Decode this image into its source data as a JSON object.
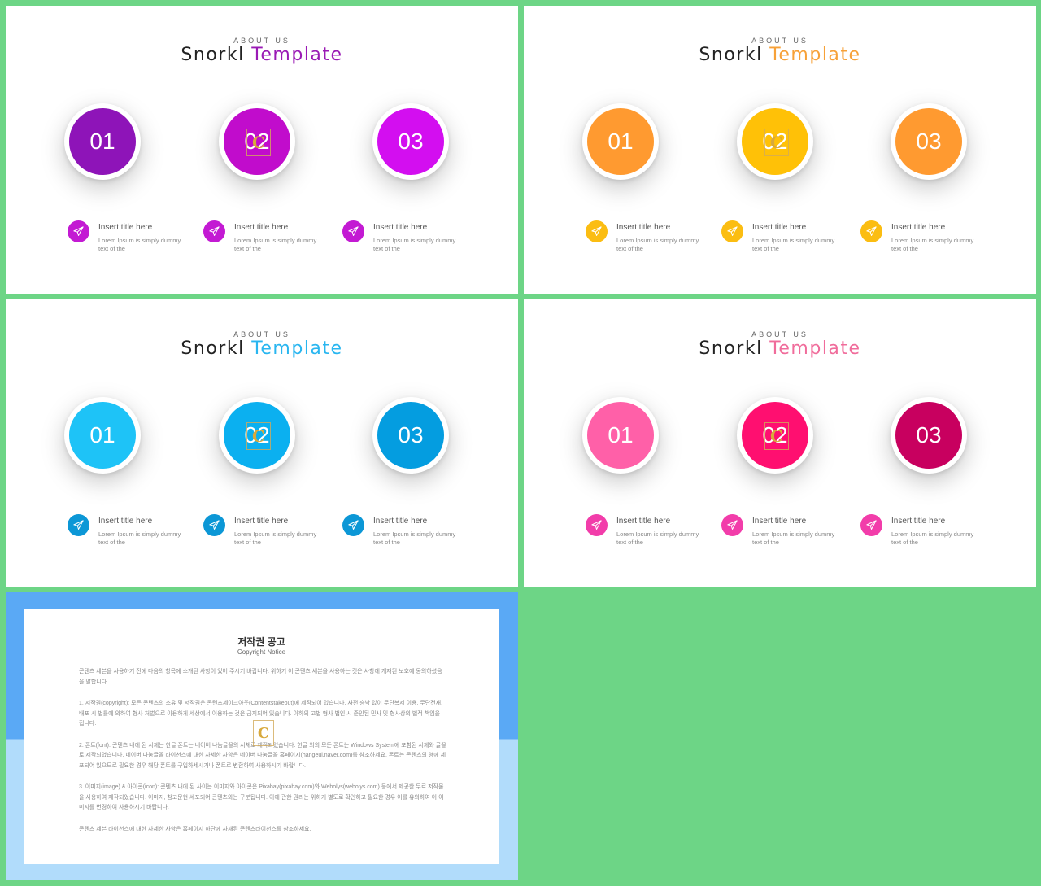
{
  "slides": [
    {
      "kicker": "ABOUT US",
      "title_a": "Snorkl",
      "title_b": "Template",
      "accent": "#9a1ab5",
      "circles": [
        {
          "n": "01",
          "color": "#8e14b8"
        },
        {
          "n": "02",
          "color": "#c10ccc"
        },
        {
          "n": "03",
          "color": "#d30ef0"
        }
      ],
      "icon_colors": [
        "#c31ad3",
        "#c31ad3",
        "#c31ad3"
      ]
    },
    {
      "kicker": "ABOUT US",
      "title_a": "Snorkl",
      "title_b": "Template",
      "accent": "#f7a138",
      "circles": [
        {
          "n": "01",
          "color": "#ff9a30"
        },
        {
          "n": "02",
          "color": "#ffc107"
        },
        {
          "n": "03",
          "color": "#ff9a30"
        }
      ],
      "icon_colors": [
        "#fbbd12",
        "#fbbd12",
        "#fbbd12"
      ]
    },
    {
      "kicker": "ABOUT US",
      "title_a": "Snorkl",
      "title_b": "Template",
      "accent": "#29b6f0",
      "circles": [
        {
          "n": "01",
          "color": "#1ec3f7"
        },
        {
          "n": "02",
          "color": "#0bb0f0"
        },
        {
          "n": "03",
          "color": "#049de0"
        }
      ],
      "icon_colors": [
        "#0c97d6",
        "#0c97d6",
        "#0c97d6"
      ]
    },
    {
      "kicker": "ABOUT US",
      "title_a": "Snorkl",
      "title_b": "Template",
      "accent": "#f06c9b",
      "circles": [
        {
          "n": "01",
          "color": "#ff60a8"
        },
        {
          "n": "02",
          "color": "#ff0f70"
        },
        {
          "n": "03",
          "color": "#c8005f"
        }
      ],
      "icon_colors": [
        "#f23daa",
        "#f23daa",
        "#f23daa"
      ]
    }
  ],
  "features": [
    {
      "title": "Insert title here",
      "desc": "Lorem Ipsum is simply dummy text of the"
    },
    {
      "title": "Insert title here",
      "desc": "Lorem Ipsum is simply dummy text of the"
    },
    {
      "title": "Insert title here",
      "desc": "Lorem Ipsum is simply dummy text of the"
    }
  ],
  "watermark": "C",
  "notice": {
    "title": "저작권 공고",
    "subtitle": "Copyright Notice",
    "paragraphs": [
      "콘텐츠 세븐을 사용하기 전에 다음의 항목에 소개된 사항이 있어 주시기 바랍니다. 위하기 이 콘텐츠 세븐을 사용하는 것은 사항에 개재된 보호에 동의하셨음을 말합니다.",
      "1. 저작권(copyright): 모든 콘텐츠의 소유 및 저작권은 콘텐츠세이크아웃(Contentstakeout)에 제작되어 있습니다. 사전 승낙 없이 무단복제 이용, 무단전재, 배포 시 법률에 의하여 형사 처벌으로 이용하게 세상에서 이용하는 것은 금지되어 있습니다. 이하의 고법 형사 법인 시 준인된 민사 및 형사상의 법적 책임을 집니다.",
      "2. 폰트(font): 콘텐츠 내에 된 서체는 한글 폰트는 네이버 나눔글꼴의 서체로 제작되었습니다. 한글 외의 모든 폰트는 Windows System에 포함된 서체와 글꼴로 제작되었습니다. 네이버 나눔글꼴 라이선스에 대한 사세한 사항은 네이버 나눔글꼴 홈페이지(hangeul.naver.com)를 참조하세요. 폰트는 콘텐츠의 형에 세포되어 있으므로 필요한 경우 해당 폰트를 구입하세시거나 폰트로 변환하여 사용하시기 바랍니다.",
      "3. 이미지(image) & 아이콘(icon): 콘텐츠 내에 된 사이는 이미지와 아이콘은 Pixabay(pixabay.com)와 Webolys(webolys.com) 등에서 제공한 무료 저작물을 사용하여 제작되었습니다. 이미지, 참고문헌 세포되어 콘텐츠와는 구분됩니다. 이에 관한 권리는 위하기 별도로 확인하고 필요한 경우 이를 유의하여 이 이미지를 변경하여 사용하시기 바랍니다.",
      "콘텐츠 세븐 라이선스에 대한 사세한 사항은 홈페이지 하단에 사재된 콘텐츠라이선스를 참조하세요."
    ]
  }
}
